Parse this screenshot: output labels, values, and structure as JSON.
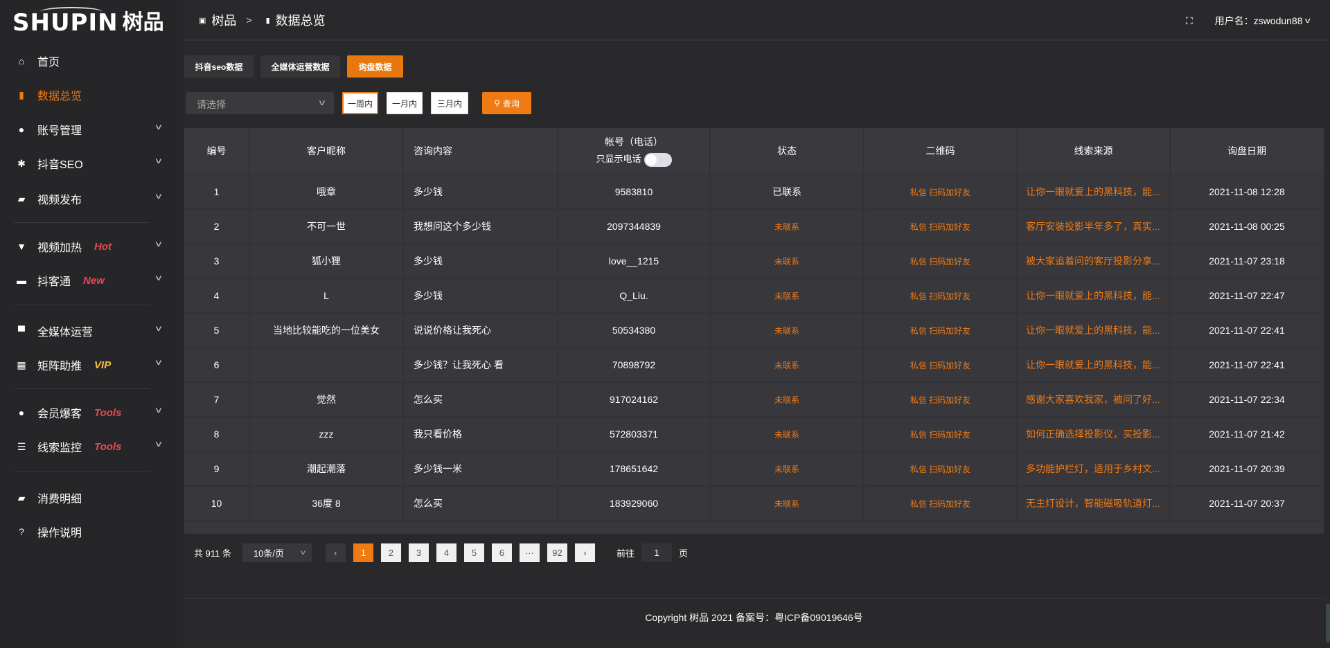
{
  "logo": {
    "en": "SHUPIN",
    "cn": "树品"
  },
  "breadcrumb": {
    "root": "树品",
    "sep": ">",
    "current": "数据总览"
  },
  "user": {
    "label": "用户名：zswodun88"
  },
  "sidebar": {
    "items": [
      {
        "label": "首页",
        "icon": "home-icon",
        "glyph": "⌂"
      },
      {
        "label": "数据总览",
        "icon": "bar-chart-icon",
        "glyph": "▮",
        "active": true
      },
      {
        "label": "账号管理",
        "icon": "user-icon",
        "glyph": "●",
        "chev": true
      },
      {
        "label": "抖音SEO",
        "icon": "gear-icon",
        "glyph": "✱",
        "chev": true
      },
      {
        "label": "视频发布",
        "icon": "camera-icon",
        "glyph": "▰",
        "chev": true
      },
      {
        "label": "视频加热",
        "icon": "sign-icon",
        "glyph": "▼",
        "chev": true,
        "badge": "Hot",
        "badge_color": "#ee4452"
      },
      {
        "label": "抖客通",
        "icon": "chat-icon",
        "glyph": "▬",
        "chev": true,
        "badge": "New",
        "badge_color": "#ee4452"
      },
      {
        "label": "全媒体运营",
        "icon": "monitor-icon",
        "glyph": "▀",
        "chev": true
      },
      {
        "label": "矩阵助推",
        "icon": "grid-icon",
        "glyph": "▦",
        "chev": true,
        "badge": "VIP",
        "badge_color": "#f5c342"
      },
      {
        "label": "会员爆客",
        "icon": "user-icon",
        "glyph": "●",
        "chev": true,
        "badge": "Tools",
        "badge_color": "#ee4452"
      },
      {
        "label": "线索监控",
        "icon": "sliders-icon",
        "glyph": "☰",
        "chev": true,
        "badge": "Tools",
        "badge_color": "#ee4452"
      },
      {
        "label": "消费明细",
        "icon": "wallet-icon",
        "glyph": "▰"
      },
      {
        "label": "操作说明",
        "icon": "help-icon",
        "glyph": "?"
      }
    ]
  },
  "tabs": [
    {
      "label": "抖音seo数据"
    },
    {
      "label": "全媒体运营数据"
    },
    {
      "label": "询盘数据",
      "active": true
    }
  ],
  "filters": {
    "select_placeholder": "请选择",
    "ranges": [
      "一周内",
      "一月内",
      "三月内"
    ],
    "active_range": "一周内",
    "query_label": "查询"
  },
  "table": {
    "headers": [
      "编号",
      "客户昵称",
      "咨询内容",
      "帐号（电话）",
      "状态",
      "二维码",
      "线索来源",
      "询盘日期"
    ],
    "phone_toggle_label": "只显示电话",
    "phone_toggle_on": false,
    "rows": [
      [
        "1",
        "哦章",
        "多少钱",
        "9583810",
        "已联系",
        "私信 扫码加好友",
        "让你一眼就爱上的黑科技，能...",
        "2021-11-08 12:28"
      ],
      [
        "2",
        "不可一世",
        "我想问这个多少钱",
        "2097344839",
        "未联系",
        "私信 扫码加好友",
        "客厅安装投影半年多了，真实...",
        "2021-11-08 00:25"
      ],
      [
        "3",
        "狐小狸",
        "多少钱",
        "love__1215",
        "未联系",
        "私信 扫码加好友",
        "被大家追着问的客厅投影分享...",
        "2021-11-07 23:18"
      ],
      [
        "4",
        "L",
        "多少钱",
        "Q_Liu.",
        "未联系",
        "私信 扫码加好友",
        "让你一眼就爱上的黑科技，能...",
        "2021-11-07 22:47"
      ],
      [
        "5",
        "当地比较能吃的一位美女",
        "说说价格让我死心",
        "50534380",
        "未联系",
        "私信 扫码加好友",
        "让你一眼就爱上的黑科技，能...",
        "2021-11-07 22:41"
      ],
      [
        "6",
        "",
        "多少钱？让我死心 看",
        "70898792",
        "未联系",
        "私信 扫码加好友",
        "让你一眼就爱上的黑科技，能...",
        "2021-11-07 22:41"
      ],
      [
        "7",
        "觉然",
        "怎么买",
        "917024162",
        "未联系",
        "私信 扫码加好友",
        "感谢大家喜欢我家，被问了好...",
        "2021-11-07 22:34"
      ],
      [
        "8",
        "zzz",
        "我只看价格",
        "572803371",
        "未联系",
        "私信 扫码加好友",
        "如何正确选择投影仪，买投影...",
        "2021-11-07 21:42"
      ],
      [
        "9",
        "潮起潮落",
        "多少钱一米",
        "178651642",
        "未联系",
        "私信 扫码加好友",
        "多功能护栏灯，适用于乡村文...",
        "2021-11-07 20:39"
      ],
      [
        "10",
        "36度 8",
        "怎么买",
        "183929060",
        "未联系",
        "私信 扫码加好友",
        "无主灯设计，智能磁吸轨道灯...",
        "2021-11-07 20:37"
      ]
    ]
  },
  "pagination": {
    "total": "共 911 条",
    "page_size": "10条/页",
    "pages": [
      "1",
      "2",
      "3",
      "4",
      "5",
      "6",
      "···",
      "92"
    ],
    "current": "1",
    "goto_prefix": "前往",
    "goto_value": "1",
    "goto_suffix": "页"
  },
  "footer": {
    "text": "Copyright 树品 2021 备案号：粤ICP备09019646号"
  },
  "colors": {
    "accent": "#f07a14",
    "sidebar_bg": "#262628",
    "table_bg": "#38373b"
  }
}
